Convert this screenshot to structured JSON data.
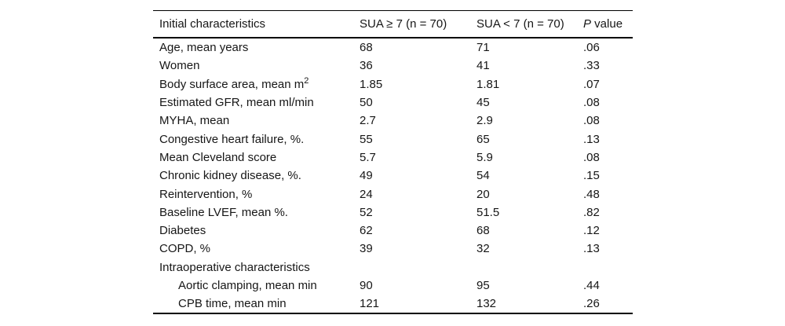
{
  "table": {
    "header": {
      "col1": "Initial characteristics",
      "col2": "SUA ≥ 7 (n = 70)",
      "col3": "SUA < 7 (n = 70)",
      "col4_italic": "P",
      "col4_rest": " value"
    },
    "rows": [
      {
        "label": "Age, mean years",
        "v1": "68",
        "v2": "71",
        "p": ".06"
      },
      {
        "label": "Women",
        "v1": "36",
        "v2": "41",
        "p": ".33"
      },
      {
        "label": "Body surface area, mean m",
        "label_sup": "2",
        "v1": "1.85",
        "v2": "1.81",
        "p": ".07"
      },
      {
        "label": "Estimated GFR, mean ml/min",
        "v1": "50",
        "v2": "45",
        "p": ".08"
      },
      {
        "label": "MYHA, mean",
        "v1": "2.7",
        "v2": "2.9",
        "p": ".08"
      },
      {
        "label": "Congestive heart failure, %.",
        "v1": "55",
        "v2": "65",
        "p": ".13"
      },
      {
        "label": "Mean Cleveland score",
        "v1": "5.7",
        "v2": "5.9",
        "p": ".08"
      },
      {
        "label": "Chronic kidney disease, %.",
        "v1": "49",
        "v2": "54",
        "p": ".15"
      },
      {
        "label": "Reintervention, %",
        "v1": "24",
        "v2": "20",
        "p": ".48"
      },
      {
        "label": "Baseline LVEF, mean %.",
        "v1": "52",
        "v2": "51.5",
        "p": ".82"
      },
      {
        "label": "Diabetes",
        "v1": "62",
        "v2": "68",
        "p": ".12"
      },
      {
        "label": "COPD, %",
        "v1": "39",
        "v2": "32",
        "p": ".13"
      },
      {
        "label": "Intraoperative characteristics",
        "v1": "",
        "v2": "",
        "p": "",
        "section": true
      },
      {
        "label": "Aortic clamping, mean min",
        "v1": "90",
        "v2": "95",
        "p": ".44",
        "indent": true
      },
      {
        "label": "CPB time, mean min",
        "v1": "121",
        "v2": "132",
        "p": ".26",
        "indent": true
      }
    ]
  },
  "colors": {
    "text": "#161616",
    "rule": "#000000",
    "background": "#ffffff"
  }
}
